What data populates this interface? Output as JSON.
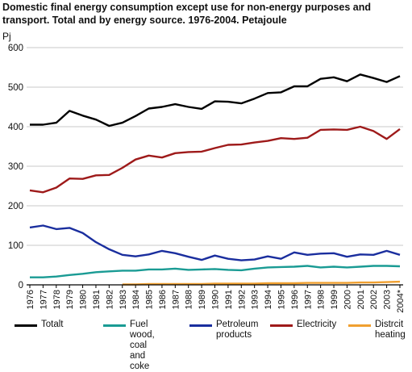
{
  "title_lines": [
    "Domestic final energy consumption except use for non-energy purposes and",
    "transport. Total and by energy source. 1976-2004. Petajoule"
  ],
  "colors": {
    "totalt": "#000000",
    "fuelwood": "#1a9b94",
    "petroleum": "#1a2e9e",
    "electricity": "#9e1a1a",
    "district": "#f0a030",
    "grid": "#c8c8c8"
  },
  "chart_data": {
    "type": "line",
    "title": "Domestic final energy consumption except use for non-energy purposes and transport. Total and by energy source. 1976-2004. Petajoule",
    "ylabel": "Pj",
    "xlabel": "",
    "ylim": [
      0,
      600
    ],
    "yticks": [
      "0",
      "100",
      "200",
      "300",
      "400",
      "500",
      "600"
    ],
    "grid": true,
    "legend": "bottom",
    "categories": [
      "1976",
      "1977",
      "1978",
      "1979",
      "1980",
      "1981",
      "1982",
      "1983",
      "1984",
      "1985",
      "1986",
      "1987",
      "1988",
      "1989",
      "1990",
      "1991",
      "1992",
      "1993",
      "1994",
      "1995",
      "1996",
      "1997",
      "1998",
      "1999",
      "2000",
      "2001",
      "2002",
      "2003",
      "2004*"
    ],
    "series": [
      {
        "key": "totalt",
        "name": "Totalt",
        "values": [
          405,
          405,
          410,
          440,
          428,
          418,
          402,
          410,
          427,
          446,
          450,
          457,
          450,
          445,
          464,
          463,
          459,
          471,
          485,
          487,
          502,
          502,
          521,
          525,
          515,
          532,
          523,
          513,
          528
        ]
      },
      {
        "key": "fuelwood",
        "name": "Fuel wood,\ncoal and coke",
        "values": [
          19,
          19,
          21,
          25,
          28,
          32,
          34,
          36,
          36,
          39,
          39,
          41,
          38,
          39,
          40,
          38,
          37,
          41,
          44,
          45,
          46,
          48,
          44,
          46,
          44,
          46,
          48,
          48,
          47
        ]
      },
      {
        "key": "petroleum",
        "name": "Petroleum\nproducts",
        "values": [
          145,
          150,
          141,
          144,
          131,
          108,
          90,
          76,
          72,
          77,
          86,
          80,
          71,
          63,
          74,
          66,
          62,
          64,
          72,
          66,
          82,
          76,
          79,
          80,
          71,
          77,
          76,
          86,
          76
        ]
      },
      {
        "key": "electricity",
        "name": "Electricity",
        "values": [
          239,
          234,
          246,
          269,
          268,
          277,
          278,
          296,
          317,
          327,
          322,
          333,
          336,
          337,
          346,
          354,
          355,
          360,
          364,
          371,
          369,
          372,
          392,
          393,
          392,
          400,
          389,
          369,
          394
        ]
      },
      {
        "key": "district",
        "name": "Distrcit\nheating",
        "values": [
          null,
          null,
          null,
          null,
          null,
          null,
          null,
          1,
          1,
          2,
          2,
          2,
          2,
          2,
          3,
          3,
          3,
          3,
          4,
          4,
          4,
          5,
          5,
          5,
          5,
          6,
          6,
          7,
          8
        ]
      }
    ]
  }
}
